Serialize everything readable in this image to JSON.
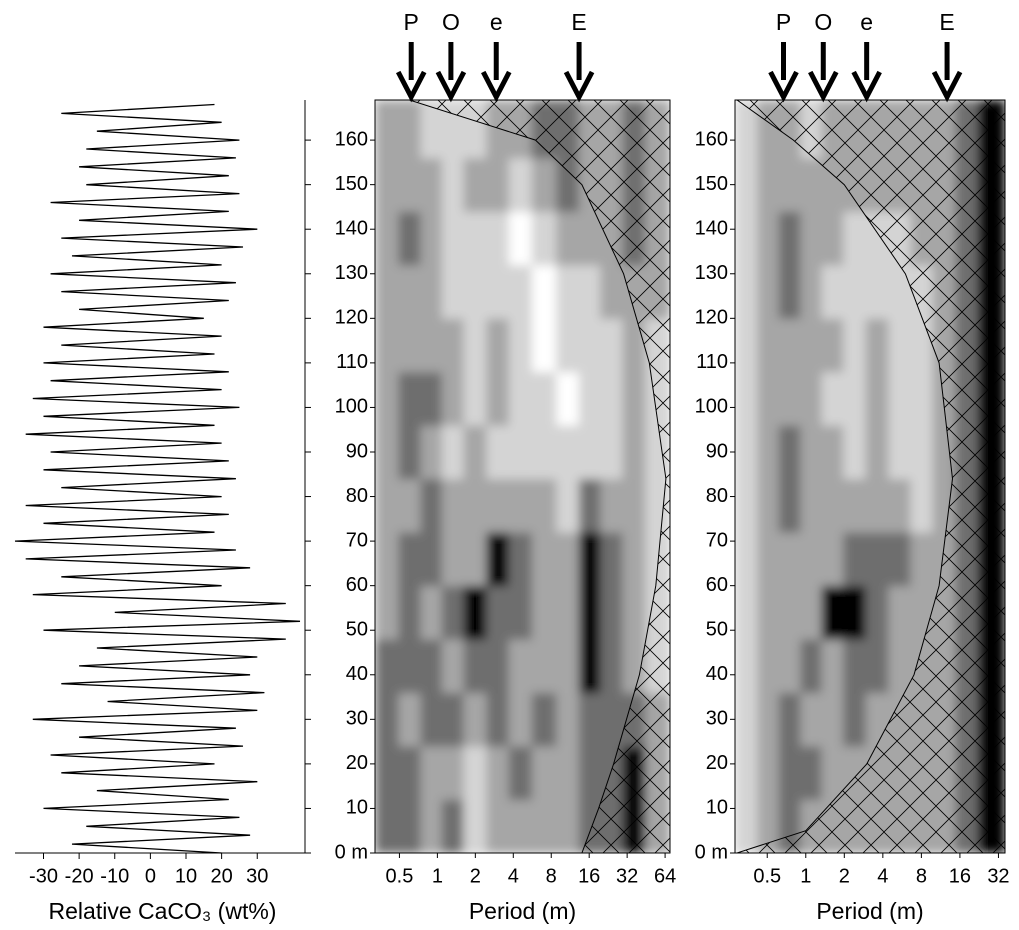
{
  "chart_data": [
    {
      "type": "line",
      "xlabel": "Relative CaCO₃ (wt%)",
      "color": "#000000",
      "y": [
        0,
        2,
        4,
        6,
        8,
        10,
        12,
        14,
        16,
        18,
        20,
        22,
        24,
        26,
        28,
        30,
        32,
        34,
        36,
        38,
        40,
        42,
        44,
        46,
        48,
        50,
        52,
        54,
        56,
        58,
        60,
        62,
        64,
        66,
        68,
        70,
        72,
        74,
        76,
        78,
        80,
        82,
        84,
        86,
        88,
        90,
        92,
        94,
        96,
        98,
        100,
        102,
        104,
        106,
        108,
        110,
        112,
        114,
        116,
        118,
        120,
        122,
        124,
        126,
        128,
        130,
        132,
        134,
        136,
        138,
        140,
        142,
        144,
        146,
        148,
        150,
        152,
        154,
        156,
        158,
        160,
        162,
        164,
        166,
        168
      ],
      "values": [
        20,
        -22,
        28,
        -18,
        25,
        -30,
        22,
        -15,
        30,
        -25,
        18,
        -28,
        26,
        -20,
        24,
        -33,
        30,
        -12,
        32,
        -25,
        28,
        -20,
        30,
        -15,
        38,
        -30,
        42,
        -10,
        38,
        -33,
        20,
        -25,
        28,
        -35,
        24,
        -38,
        18,
        -30,
        22,
        -35,
        20,
        -25,
        24,
        -30,
        22,
        -28,
        20,
        -35,
        18,
        -30,
        25,
        -33,
        20,
        -28,
        22,
        -30,
        18,
        -25,
        20,
        -30,
        15,
        -20,
        22,
        -25,
        24,
        -28,
        20,
        -22,
        26,
        -25,
        30,
        -20,
        22,
        -28,
        25,
        -18,
        22,
        -20,
        24,
        -18,
        25,
        -15,
        20,
        -25,
        18
      ],
      "xlim": [
        -38,
        42
      ],
      "xticks": [
        -30,
        -20,
        -10,
        0,
        10,
        20,
        30
      ],
      "ylim": [
        0,
        169
      ],
      "yticks": [
        0,
        10,
        20,
        30,
        40,
        50,
        60,
        70,
        80,
        90,
        100,
        110,
        120,
        130,
        140,
        150,
        160
      ]
    },
    {
      "type": "heatmap",
      "xlabel": "Period (m)",
      "xscale": "log",
      "xlim": [
        0.32,
        70
      ],
      "xticks": [
        0.5,
        1,
        2,
        4,
        8,
        16,
        32,
        64
      ],
      "ylim": [
        0,
        169
      ],
      "yticks": [
        {
          "value": 0,
          "label": "0 m"
        },
        10,
        20,
        30,
        40,
        50,
        60,
        70,
        80,
        90,
        100,
        110,
        120,
        130,
        140,
        150,
        160
      ],
      "colors": [
        "#ffffff",
        "#d4d4d4",
        "#a6a6a6",
        "#6e6e6e",
        "#000000"
      ],
      "x": [
        0.4,
        0.6,
        0.9,
        1.3,
        2,
        3,
        4.5,
        7,
        11,
        16,
        24,
        36,
        55
      ],
      "y": [
        6,
        18,
        30,
        42,
        54,
        66,
        78,
        90,
        102,
        114,
        126,
        138,
        150,
        162
      ],
      "z": [
        [
          3,
          3,
          2,
          3,
          1,
          2,
          2,
          2,
          2,
          3,
          3,
          4,
          2
        ],
        [
          3,
          3,
          2,
          2,
          1,
          2,
          3,
          2,
          2,
          3,
          3,
          4,
          2
        ],
        [
          3,
          2,
          3,
          3,
          2,
          3,
          2,
          3,
          2,
          3,
          3,
          3,
          2
        ],
        [
          3,
          3,
          3,
          2,
          3,
          3,
          2,
          2,
          2,
          4,
          3,
          2,
          1
        ],
        [
          2,
          3,
          2,
          3,
          4,
          3,
          3,
          2,
          2,
          4,
          3,
          2,
          1
        ],
        [
          2,
          3,
          3,
          2,
          2,
          4,
          3,
          2,
          2,
          4,
          3,
          2,
          1
        ],
        [
          2,
          2,
          3,
          2,
          2,
          2,
          2,
          2,
          1,
          3,
          2,
          2,
          1
        ],
        [
          2,
          3,
          2,
          1,
          2,
          1,
          1,
          1,
          1,
          1,
          1,
          2,
          1
        ],
        [
          2,
          3,
          3,
          2,
          1,
          2,
          1,
          1,
          0,
          1,
          1,
          2,
          1
        ],
        [
          2,
          2,
          2,
          2,
          1,
          2,
          1,
          0,
          1,
          1,
          1,
          2,
          1
        ],
        [
          2,
          2,
          2,
          1,
          1,
          1,
          1,
          0,
          1,
          1,
          2,
          2,
          2
        ],
        [
          2,
          3,
          2,
          1,
          1,
          1,
          0,
          1,
          2,
          2,
          2,
          3,
          2
        ],
        [
          2,
          2,
          2,
          1,
          2,
          2,
          1,
          2,
          3,
          2,
          2,
          3,
          2
        ],
        [
          2,
          2,
          1,
          1,
          1,
          2,
          2,
          3,
          3,
          2,
          2,
          3,
          2
        ]
      ],
      "coi": {
        "y": [
          0,
          10,
          20,
          40,
          60,
          84,
          110,
          130,
          150,
          160,
          169
        ],
        "period": [
          14,
          19,
          25,
          40,
          54,
          65,
          48,
          30,
          14,
          6,
          0.6
        ]
      },
      "annotations": [
        {
          "text": "P",
          "x": 0.62
        },
        {
          "text": "O",
          "x": 1.28
        },
        {
          "text": "e",
          "x": 2.93
        },
        {
          "text": "E",
          "x": 13.3
        }
      ]
    },
    {
      "type": "heatmap",
      "xlabel": "Period (m)",
      "xscale": "log",
      "xlim": [
        0.28,
        36
      ],
      "xticks": [
        0.5,
        1,
        2,
        4,
        8,
        16,
        32
      ],
      "ylim": [
        0,
        169
      ],
      "yticks": [
        {
          "value": 0,
          "label": "0 m"
        },
        10,
        20,
        30,
        40,
        50,
        60,
        70,
        80,
        90,
        100,
        110,
        120,
        130,
        140,
        150,
        160
      ],
      "colors": [
        "#ffffff",
        "#d4d4d4",
        "#a6a6a6",
        "#6e6e6e",
        "#000000"
      ],
      "x": [
        0.35,
        0.5,
        0.75,
        1.1,
        1.6,
        2.4,
        3.6,
        5.4,
        8,
        12,
        18,
        27
      ],
      "y": [
        6,
        18,
        30,
        42,
        54,
        66,
        78,
        90,
        102,
        114,
        126,
        138,
        150,
        162
      ],
      "z": [
        [
          1,
          2,
          3,
          2,
          2,
          2,
          2,
          2,
          2,
          2,
          3,
          4
        ],
        [
          1,
          2,
          3,
          3,
          2,
          2,
          2,
          2,
          2,
          2,
          3,
          4
        ],
        [
          1,
          2,
          3,
          2,
          2,
          3,
          2,
          2,
          2,
          2,
          3,
          4
        ],
        [
          1,
          2,
          2,
          3,
          2,
          3,
          3,
          2,
          2,
          2,
          3,
          4
        ],
        [
          1,
          2,
          2,
          2,
          4,
          4,
          3,
          2,
          2,
          2,
          3,
          4
        ],
        [
          1,
          2,
          2,
          2,
          2,
          3,
          3,
          3,
          2,
          2,
          3,
          4
        ],
        [
          1,
          2,
          3,
          2,
          2,
          2,
          2,
          2,
          1,
          2,
          3,
          4
        ],
        [
          1,
          2,
          3,
          2,
          2,
          1,
          2,
          1,
          1,
          2,
          3,
          4
        ],
        [
          1,
          2,
          2,
          2,
          1,
          1,
          2,
          1,
          1,
          2,
          3,
          4
        ],
        [
          1,
          2,
          2,
          2,
          2,
          1,
          2,
          1,
          1,
          2,
          3,
          4
        ],
        [
          1,
          2,
          3,
          2,
          1,
          1,
          1,
          1,
          1,
          2,
          3,
          4
        ],
        [
          1,
          2,
          3,
          2,
          2,
          1,
          1,
          1,
          2,
          2,
          3,
          4
        ],
        [
          1,
          2,
          2,
          2,
          2,
          2,
          2,
          2,
          2,
          2,
          3,
          4
        ],
        [
          1,
          2,
          2,
          1,
          2,
          2,
          2,
          2,
          2,
          2,
          3,
          4
        ]
      ],
      "coi": {
        "y": [
          0,
          5,
          20,
          40,
          60,
          84,
          110,
          130,
          150,
          160,
          169
        ],
        "period": [
          0.29,
          1,
          3,
          7,
          11,
          14,
          11,
          6,
          2,
          0.8,
          0.29
        ]
      },
      "annotations": [
        {
          "text": "P",
          "x": 0.67
        },
        {
          "text": "O",
          "x": 1.37
        },
        {
          "text": "e",
          "x": 2.99
        },
        {
          "text": "E",
          "x": 12.7
        }
      ]
    }
  ]
}
